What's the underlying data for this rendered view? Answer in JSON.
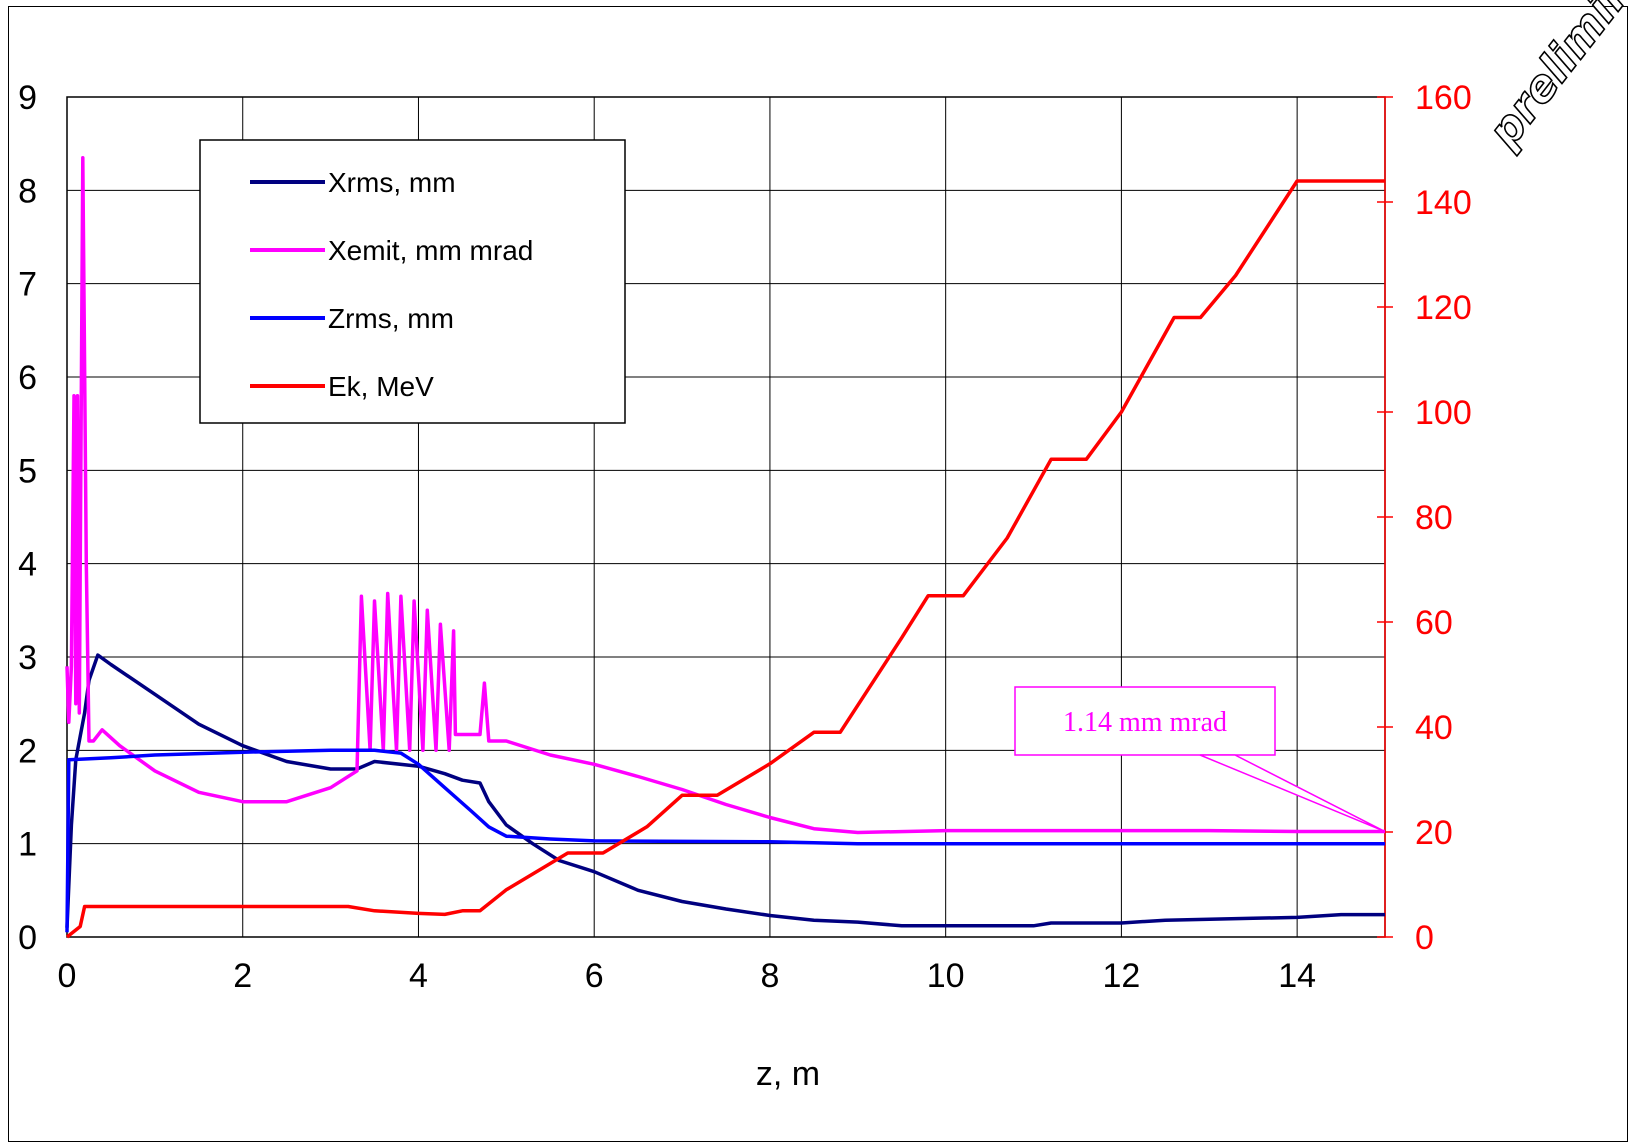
{
  "watermark": "preliminary",
  "chart_data": {
    "type": "line",
    "xlabel": "z, m",
    "ylabel_left": "",
    "ylabel_right": "",
    "xlim": [
      0,
      15
    ],
    "ylim_left": [
      0,
      9
    ],
    "ylim_right": [
      0,
      160
    ],
    "x_ticks": [
      "0",
      "2",
      "4",
      "6",
      "8",
      "10",
      "12",
      "14"
    ],
    "y_left_ticks": [
      "0",
      "1",
      "2",
      "3",
      "4",
      "5",
      "6",
      "7",
      "8",
      "9"
    ],
    "y_right_ticks": [
      "0",
      "20",
      "40",
      "60",
      "80",
      "100",
      "120",
      "140",
      "160"
    ],
    "grid": true,
    "legend_position": "top-left",
    "annotation": "1.14 mm mrad",
    "series": [
      {
        "name": "Xrms, mm",
        "axis": "left",
        "color": "#000080",
        "points": [
          [
            0,
            0.1
          ],
          [
            0.05,
            1.2
          ],
          [
            0.1,
            1.9
          ],
          [
            0.15,
            2.15
          ],
          [
            0.2,
            2.4
          ],
          [
            0.25,
            2.75
          ],
          [
            0.35,
            3.02
          ],
          [
            0.5,
            2.92
          ],
          [
            1.0,
            2.6
          ],
          [
            1.5,
            2.28
          ],
          [
            2.0,
            2.05
          ],
          [
            2.5,
            1.88
          ],
          [
            3.0,
            1.8
          ],
          [
            3.3,
            1.8
          ],
          [
            3.5,
            1.88
          ],
          [
            4.0,
            1.83
          ],
          [
            4.3,
            1.75
          ],
          [
            4.5,
            1.68
          ],
          [
            4.7,
            1.65
          ],
          [
            4.8,
            1.45
          ],
          [
            5.0,
            1.2
          ],
          [
            5.3,
            1.0
          ],
          [
            5.6,
            0.82
          ],
          [
            6.0,
            0.7
          ],
          [
            6.5,
            0.5
          ],
          [
            7.0,
            0.38
          ],
          [
            7.5,
            0.3
          ],
          [
            8.0,
            0.23
          ],
          [
            8.5,
            0.18
          ],
          [
            9.0,
            0.16
          ],
          [
            9.5,
            0.12
          ],
          [
            10.0,
            0.12
          ],
          [
            11.0,
            0.12
          ],
          [
            11.2,
            0.15
          ],
          [
            12.0,
            0.15
          ],
          [
            12.5,
            0.18
          ],
          [
            13.0,
            0.19
          ],
          [
            13.5,
            0.2
          ],
          [
            14.0,
            0.21
          ],
          [
            14.5,
            0.24
          ],
          [
            15.0,
            0.24
          ]
        ]
      },
      {
        "name": "Xemit, mm mrad",
        "axis": "left",
        "color": "#ff00ff",
        "points": [
          [
            0,
            2.9
          ],
          [
            0.02,
            2.3
          ],
          [
            0.05,
            2.9
          ],
          [
            0.08,
            5.8
          ],
          [
            0.1,
            2.5
          ],
          [
            0.12,
            5.8
          ],
          [
            0.14,
            2.4
          ],
          [
            0.18,
            8.35
          ],
          [
            0.22,
            4.0
          ],
          [
            0.25,
            2.1
          ],
          [
            0.3,
            2.1
          ],
          [
            0.4,
            2.22
          ],
          [
            0.6,
            2.05
          ],
          [
            1.0,
            1.78
          ],
          [
            1.5,
            1.55
          ],
          [
            2.0,
            1.45
          ],
          [
            2.5,
            1.45
          ],
          [
            3.0,
            1.6
          ],
          [
            3.3,
            1.78
          ],
          [
            3.35,
            3.65
          ],
          [
            3.45,
            2.0
          ],
          [
            3.5,
            3.6
          ],
          [
            3.6,
            2.0
          ],
          [
            3.65,
            3.68
          ],
          [
            3.75,
            2.0
          ],
          [
            3.8,
            3.65
          ],
          [
            3.9,
            2.0
          ],
          [
            3.95,
            3.6
          ],
          [
            4.05,
            2.0
          ],
          [
            4.1,
            3.5
          ],
          [
            4.2,
            2.0
          ],
          [
            4.25,
            3.35
          ],
          [
            4.35,
            2.0
          ],
          [
            4.4,
            3.28
          ],
          [
            4.42,
            2.17
          ],
          [
            4.7,
            2.17
          ],
          [
            4.75,
            2.72
          ],
          [
            4.8,
            2.1
          ],
          [
            5.0,
            2.1
          ],
          [
            5.5,
            1.95
          ],
          [
            6.0,
            1.85
          ],
          [
            6.5,
            1.72
          ],
          [
            7.0,
            1.58
          ],
          [
            7.5,
            1.42
          ],
          [
            8.0,
            1.28
          ],
          [
            8.5,
            1.16
          ],
          [
            9.0,
            1.12
          ],
          [
            10.0,
            1.14
          ],
          [
            11.0,
            1.14
          ],
          [
            12.0,
            1.14
          ],
          [
            13.0,
            1.14
          ],
          [
            14.0,
            1.13
          ],
          [
            15.0,
            1.13
          ]
        ]
      },
      {
        "name": "Zrms, mm",
        "axis": "left",
        "color": "#0000ff",
        "points": [
          [
            0,
            0.05
          ],
          [
            0.02,
            1.9
          ],
          [
            0.5,
            1.92
          ],
          [
            1.0,
            1.95
          ],
          [
            2.0,
            1.98
          ],
          [
            3.0,
            2.0
          ],
          [
            3.5,
            2.0
          ],
          [
            3.8,
            1.97
          ],
          [
            4.0,
            1.85
          ],
          [
            4.3,
            1.6
          ],
          [
            4.6,
            1.35
          ],
          [
            4.8,
            1.18
          ],
          [
            5.0,
            1.08
          ],
          [
            5.5,
            1.05
          ],
          [
            6.0,
            1.03
          ],
          [
            8.0,
            1.02
          ],
          [
            9.0,
            1.0
          ],
          [
            12.0,
            1.0
          ],
          [
            15.0,
            1.0
          ]
        ]
      },
      {
        "name": "Ek, MeV",
        "axis": "right",
        "color": "#ff0000",
        "points": [
          [
            0,
            0
          ],
          [
            0.15,
            2
          ],
          [
            0.2,
            5.8
          ],
          [
            3.2,
            5.8
          ],
          [
            3.5,
            5
          ],
          [
            4.0,
            4.5
          ],
          [
            4.3,
            4.3
          ],
          [
            4.5,
            5
          ],
          [
            4.7,
            5
          ],
          [
            5.0,
            9
          ],
          [
            5.4,
            13
          ],
          [
            5.7,
            16
          ],
          [
            6.1,
            16
          ],
          [
            6.6,
            21
          ],
          [
            7.0,
            27
          ],
          [
            7.4,
            27
          ],
          [
            8.0,
            33
          ],
          [
            8.5,
            39
          ],
          [
            8.8,
            39
          ],
          [
            9.5,
            57
          ],
          [
            9.8,
            65
          ],
          [
            10.2,
            65
          ],
          [
            10.7,
            76
          ],
          [
            11.2,
            91
          ],
          [
            11.6,
            91
          ],
          [
            12.0,
            100
          ],
          [
            12.6,
            118
          ],
          [
            12.9,
            118
          ],
          [
            13.3,
            126
          ],
          [
            14.0,
            144
          ],
          [
            15.0,
            144
          ]
        ]
      }
    ]
  }
}
